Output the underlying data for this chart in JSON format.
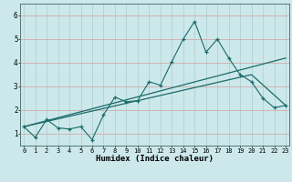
{
  "title": "",
  "xlabel": "Humidex (Indice chaleur)",
  "background_color": "#cce8ea",
  "grid_color": "#aacdd0",
  "line_color": "#1a6b6b",
  "x_values": [
    0,
    1,
    2,
    3,
    4,
    5,
    6,
    7,
    8,
    9,
    10,
    11,
    12,
    13,
    14,
    15,
    16,
    17,
    18,
    19,
    20,
    21,
    22,
    23
  ],
  "line1": [
    1.3,
    0.85,
    1.6,
    1.25,
    1.2,
    1.3,
    0.75,
    1.8,
    2.55,
    2.35,
    2.4,
    3.2,
    3.05,
    4.05,
    5.0,
    5.75,
    4.45,
    5.0,
    4.2,
    3.5,
    3.2,
    2.5,
    2.1,
    2.2
  ],
  "line2": {
    "x": [
      0,
      23
    ],
    "y": [
      1.3,
      4.2
    ]
  },
  "line3": {
    "x": [
      0,
      20,
      23
    ],
    "y": [
      1.3,
      3.5,
      2.2
    ]
  },
  "xlim": [
    -0.3,
    23.3
  ],
  "ylim": [
    0.5,
    6.5
  ],
  "yticks": [
    1,
    2,
    3,
    4,
    5,
    6
  ],
  "xticks": [
    0,
    1,
    2,
    3,
    4,
    5,
    6,
    7,
    8,
    9,
    10,
    11,
    12,
    13,
    14,
    15,
    16,
    17,
    18,
    19,
    20,
    21,
    22,
    23
  ],
  "xlabel_fontsize": 6.5,
  "tick_fontsize": 5.0
}
